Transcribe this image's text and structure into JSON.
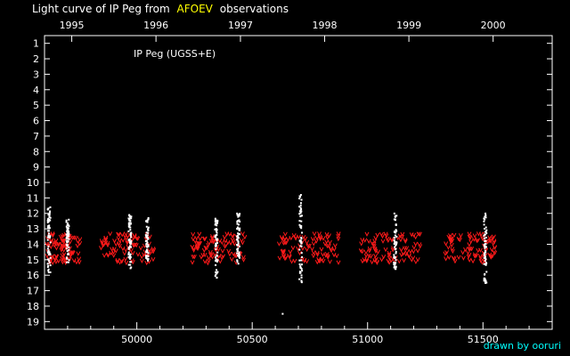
{
  "header": {
    "title_prefix": "Light curve of IP Peg from",
    "title_source": "AFOEV",
    "title_suffix": "observations"
  },
  "footer": {
    "credit": "drawn by ooruri"
  },
  "colors": {
    "background": "#000000",
    "axis": "#ffffff",
    "visual_estimates": "#ff1a1a",
    "positive_observations": "#ffffff",
    "source_highlight": "#ffff00",
    "credit": "#00ffff"
  },
  "chart_data": {
    "type": "scatter",
    "annotation": "IP Peg (UGSS+E)",
    "xlim": [
      49600,
      51800
    ],
    "ylim": [
      0.5,
      19.5
    ],
    "y_inverted": true,
    "grid": false,
    "x_ticks": [
      50000,
      50500,
      51000,
      51500
    ],
    "x_tick_labels": [
      "50000",
      "50500",
      "51000",
      "51500"
    ],
    "top_axis_ticks": [
      49718,
      50083,
      50449,
      50814,
      51179,
      51544
    ],
    "top_axis_labels": [
      "1995",
      "1996",
      "1997",
      "1998",
      "1999",
      "2000"
    ],
    "y_ticks": [
      1,
      2,
      3,
      4,
      5,
      6,
      7,
      8,
      9,
      10,
      11,
      12,
      13,
      14,
      15,
      16,
      17,
      18,
      19
    ],
    "y_tick_labels": [
      "1",
      "2",
      "3",
      "4",
      "5",
      "6",
      "7",
      "8",
      "9",
      "10",
      "11",
      "12",
      "13",
      "14",
      "15",
      "16",
      "17",
      "18",
      "19"
    ],
    "season_ranges_mjd": [
      [
        49610,
        49760
      ],
      [
        49845,
        50080
      ],
      [
        50240,
        50470
      ],
      [
        50610,
        50880
      ],
      [
        50970,
        51230
      ],
      [
        51335,
        51555
      ]
    ],
    "red_band_mag": [
      13.3,
      15.2
    ],
    "outburst_clusters": [
      {
        "mjd": 49620,
        "mag_range": [
          11.6,
          16.0
        ]
      },
      {
        "mjd": 49700,
        "mag_range": [
          12.4,
          15.2
        ]
      },
      {
        "mjd": 49970,
        "mag_range": [
          12.1,
          15.6
        ]
      },
      {
        "mjd": 50045,
        "mag_range": [
          12.3,
          15.1
        ]
      },
      {
        "mjd": 50345,
        "mag_range": [
          12.3,
          16.2
        ]
      },
      {
        "mjd": 50440,
        "mag_range": [
          12.0,
          15.4
        ]
      },
      {
        "mjd": 50710,
        "mag_range": [
          10.8,
          16.5
        ]
      },
      {
        "mjd": 51120,
        "mag_range": [
          12.0,
          15.6
        ]
      },
      {
        "mjd": 51510,
        "mag_range": [
          12.0,
          16.6
        ]
      }
    ],
    "isolated_points": [
      {
        "mjd": 50632,
        "mag": 18.5
      }
    ]
  }
}
